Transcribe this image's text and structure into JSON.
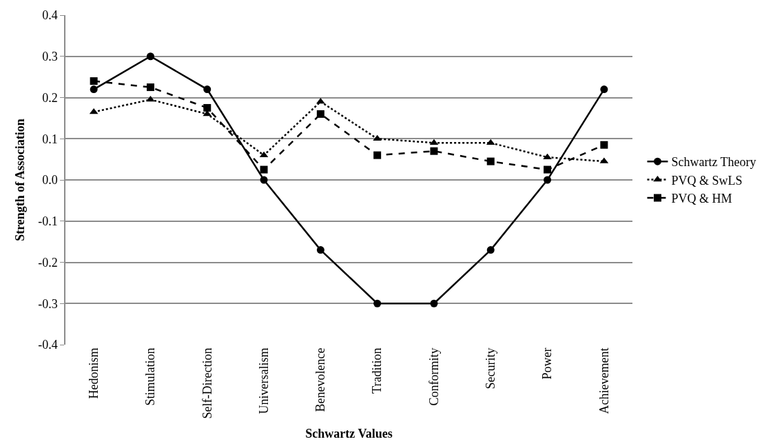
{
  "chart_data": {
    "type": "line",
    "xlabel": "Schwartz Values",
    "ylabel": "Strength of Association",
    "categories": [
      "Hedonism",
      "Stimulation",
      "Self-Direction",
      "Universalism",
      "Benevolence",
      "Tradition",
      "Conformity",
      "Security",
      "Power",
      "Achievement"
    ],
    "series": [
      {
        "name": "Schwartz Theory",
        "color": "#000000",
        "marker": "circle",
        "line_style": "solid",
        "values": [
          0.22,
          0.3,
          0.22,
          0.0,
          -0.17,
          -0.3,
          -0.3,
          -0.17,
          0.0,
          0.22
        ]
      },
      {
        "name": "PVQ & SwLS",
        "color": "#000000",
        "marker": "triangle",
        "line_style": "dotted",
        "values": [
          0.165,
          0.195,
          0.16,
          0.06,
          0.19,
          0.1,
          0.09,
          0.09,
          0.055,
          0.045
        ]
      },
      {
        "name": "PVQ & HM",
        "color": "#000000",
        "marker": "square",
        "line_style": "dashed",
        "values": [
          0.24,
          0.225,
          0.175,
          0.025,
          0.16,
          0.06,
          0.07,
          0.045,
          0.025,
          0.085
        ]
      }
    ],
    "ylim": [
      -0.4,
      0.4
    ],
    "yticks": [
      {
        "value": -0.4,
        "label": "-0.4"
      },
      {
        "value": -0.3,
        "label": "-0.3"
      },
      {
        "value": -0.2,
        "label": "-0.2"
      },
      {
        "value": -0.1,
        "label": "-0.1"
      },
      {
        "value": 0,
        "label": "0.0"
      },
      {
        "value": 0.1,
        "label": "0.1"
      },
      {
        "value": 0.2,
        "label": "0.2"
      },
      {
        "value": 0.3,
        "label": "0.3"
      },
      {
        "value": 0.4,
        "label": "0.4"
      }
    ],
    "grid": "y",
    "legend": "right"
  }
}
